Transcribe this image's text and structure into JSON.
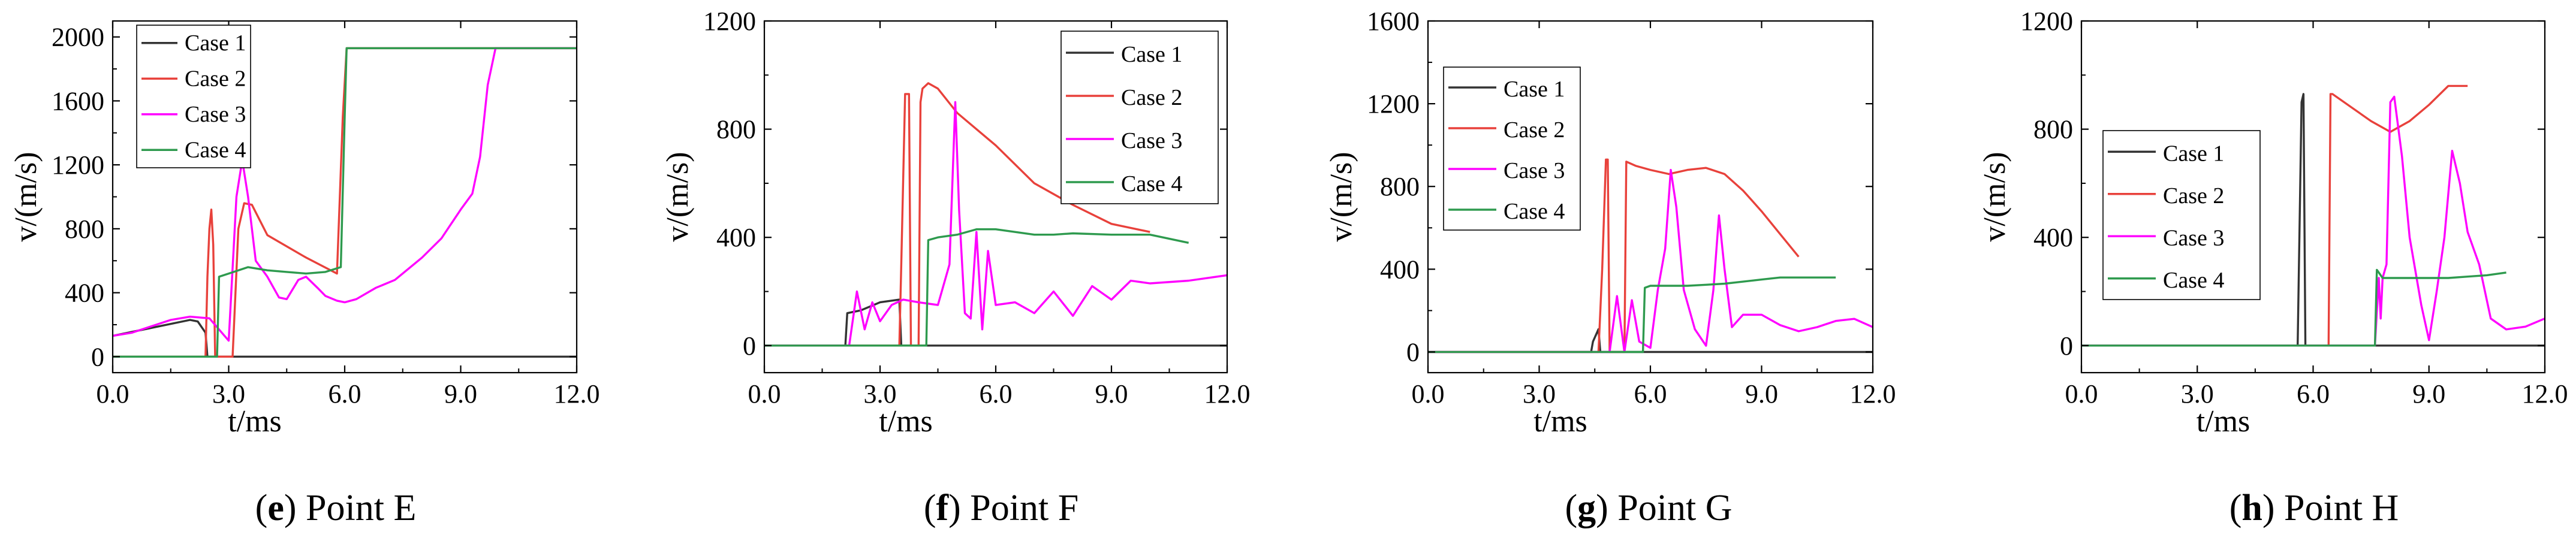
{
  "chart_data": [
    {
      "type": "line",
      "panel_letter": "e",
      "caption": " Point E",
      "xlabel": "t/ms",
      "ylabel": "v/(m/s)",
      "xlim": [
        0,
        12
      ],
      "ylim": [
        -100,
        2100
      ],
      "xticks": [
        0,
        3,
        6,
        9,
        12
      ],
      "xtick_labels": [
        "0.0",
        "3.0",
        "6.0",
        "9.0",
        "12.0"
      ],
      "yticks": [
        0,
        400,
        800,
        1200,
        1600,
        2000
      ],
      "ytick_labels": [
        "0",
        "400",
        "800",
        "1200",
        "1600",
        "2000"
      ],
      "legend": "top-left",
      "series": [
        {
          "name": "Case 1",
          "color": "#333333",
          "x": [
            0,
            1.0,
            2.0,
            2.2,
            2.4,
            2.45,
            12
          ],
          "y": [
            130,
            180,
            230,
            220,
            150,
            0,
            0
          ]
        },
        {
          "name": "Case 2",
          "color": "#e8413b",
          "x": [
            0,
            2.4,
            2.45,
            2.5,
            2.55,
            2.6,
            2.65,
            3.1,
            3.25,
            3.4,
            3.6,
            4.0,
            5.0,
            5.8,
            5.95,
            6.05,
            12
          ],
          "y": [
            0,
            0,
            500,
            800,
            920,
            700,
            0,
            0,
            800,
            960,
            950,
            760,
            620,
            520,
            1500,
            1930,
            1930
          ]
        },
        {
          "name": "Case 3",
          "color": "#ff00ff",
          "x": [
            0,
            0.5,
            1.0,
            1.5,
            2.0,
            2.5,
            3.0,
            3.2,
            3.35,
            3.5,
            3.7,
            4.0,
            4.3,
            4.5,
            4.8,
            5.0,
            5.3,
            5.5,
            5.8,
            6.0,
            6.3,
            6.8,
            7.3,
            8.0,
            8.5,
            9.0,
            9.3,
            9.5,
            9.7,
            9.9,
            10.5,
            12
          ],
          "y": [
            130,
            150,
            190,
            230,
            250,
            240,
            100,
            1000,
            1230,
            1000,
            600,
            500,
            370,
            360,
            480,
            500,
            430,
            380,
            350,
            340,
            360,
            430,
            480,
            620,
            740,
            920,
            1020,
            1250,
            1700,
            1930,
            1930,
            1930
          ]
        },
        {
          "name": "Case 4",
          "color": "#2e9a4e",
          "x": [
            0,
            2.7,
            2.75,
            3.0,
            3.5,
            4.0,
            4.5,
            5.0,
            5.5,
            5.9,
            6.0,
            6.05,
            12
          ],
          "y": [
            0,
            0,
            500,
            520,
            560,
            540,
            530,
            520,
            530,
            560,
            1500,
            1930,
            1930
          ]
        }
      ]
    },
    {
      "type": "line",
      "panel_letter": "f",
      "caption": " Point F",
      "xlabel": "t/ms",
      "ylabel": "v/(m/s)",
      "xlim": [
        0,
        12
      ],
      "ylim": [
        -100,
        1200
      ],
      "xticks": [
        0,
        3,
        6,
        9,
        12
      ],
      "xtick_labels": [
        "0.0",
        "3.0",
        "6.0",
        "9.0",
        "12.0"
      ],
      "yticks": [
        0,
        400,
        800,
        1200
      ],
      "ytick_labels": [
        "0",
        "400",
        "800",
        "1200"
      ],
      "legend": "top-right",
      "series": [
        {
          "name": "Case 1",
          "color": "#333333",
          "x": [
            0,
            2.1,
            2.15,
            2.5,
            3.0,
            3.5,
            3.55,
            12
          ],
          "y": [
            0,
            0,
            120,
            130,
            160,
            170,
            0,
            0
          ]
        },
        {
          "name": "Case 2",
          "color": "#e8413b",
          "x": [
            0,
            3.5,
            3.55,
            3.65,
            3.75,
            3.8,
            4.0,
            4.05,
            4.1,
            4.25,
            4.5,
            5.0,
            6.0,
            7.0,
            8.0,
            9.0,
            10.0
          ],
          "y": [
            0,
            0,
            300,
            930,
            930,
            0,
            0,
            900,
            950,
            970,
            950,
            860,
            740,
            600,
            520,
            450,
            420
          ]
        },
        {
          "name": "Case 3",
          "color": "#ff00ff",
          "x": [
            0,
            2.2,
            2.4,
            2.6,
            2.8,
            3.0,
            3.3,
            3.6,
            4.0,
            4.5,
            4.8,
            4.95,
            5.05,
            5.2,
            5.35,
            5.5,
            5.65,
            5.8,
            6.0,
            6.5,
            7.0,
            7.5,
            8.0,
            8.5,
            9.0,
            9.5,
            10.0,
            11.0,
            12.0
          ],
          "y": [
            0,
            0,
            200,
            60,
            160,
            90,
            150,
            170,
            160,
            150,
            300,
            900,
            500,
            120,
            100,
            420,
            60,
            350,
            150,
            160,
            120,
            200,
            110,
            220,
            170,
            240,
            230,
            240,
            260
          ]
        },
        {
          "name": "Case 4",
          "color": "#2e9a4e",
          "x": [
            0,
            4.2,
            4.25,
            4.5,
            5.0,
            5.5,
            6.0,
            6.5,
            7.0,
            7.5,
            8.0,
            9.0,
            10.0,
            11.0
          ],
          "y": [
            0,
            0,
            390,
            400,
            410,
            430,
            430,
            420,
            410,
            410,
            415,
            410,
            410,
            380
          ]
        }
      ]
    },
    {
      "type": "line",
      "panel_letter": "g",
      "caption": " Point G",
      "xlabel": "t/ms",
      "ylabel": "v/(m/s)",
      "xlim": [
        0,
        12
      ],
      "ylim": [
        -100,
        1600
      ],
      "xticks": [
        0,
        3,
        6,
        9,
        12
      ],
      "xtick_labels": [
        "0.0",
        "3.0",
        "6.0",
        "9.0",
        "12.0"
      ],
      "yticks": [
        0,
        400,
        800,
        1200,
        1600
      ],
      "ytick_labels": [
        "0",
        "400",
        "800",
        "1200",
        "1600"
      ],
      "legend": "top-left",
      "series": [
        {
          "name": "Case 1",
          "color": "#333333",
          "x": [
            0,
            4.4,
            4.45,
            4.6,
            4.65,
            12
          ],
          "y": [
            0,
            0,
            50,
            110,
            0,
            0
          ]
        },
        {
          "name": "Case 2",
          "color": "#e8413b",
          "x": [
            0,
            4.6,
            4.7,
            4.8,
            4.85,
            4.9,
            5.3,
            5.35,
            5.6,
            6.0,
            6.5,
            7.0,
            7.5,
            8.0,
            8.5,
            9.0,
            9.5,
            10.0
          ],
          "y": [
            0,
            0,
            400,
            930,
            930,
            0,
            0,
            920,
            900,
            880,
            860,
            880,
            890,
            860,
            780,
            680,
            570,
            460
          ]
        },
        {
          "name": "Case 3",
          "color": "#ff00ff",
          "x": [
            0,
            4.9,
            5.1,
            5.3,
            5.5,
            5.7,
            6.0,
            6.2,
            6.4,
            6.55,
            6.7,
            6.9,
            7.2,
            7.5,
            7.7,
            7.85,
            8.0,
            8.2,
            8.5,
            9.0,
            9.5,
            10.0,
            10.5,
            11.0,
            11.5,
            12.0
          ],
          "y": [
            0,
            0,
            270,
            0,
            250,
            50,
            20,
            300,
            500,
            880,
            700,
            300,
            110,
            30,
            300,
            660,
            400,
            120,
            180,
            180,
            130,
            100,
            120,
            150,
            160,
            120
          ]
        },
        {
          "name": "Case 4",
          "color": "#2e9a4e",
          "x": [
            0,
            5.8,
            5.85,
            6.0,
            6.5,
            7.0,
            7.5,
            8.0,
            8.5,
            9.0,
            9.5,
            10.0,
            11.0
          ],
          "y": [
            0,
            0,
            310,
            320,
            320,
            320,
            325,
            330,
            340,
            350,
            360,
            360,
            360
          ]
        }
      ]
    },
    {
      "type": "line",
      "panel_letter": "h",
      "caption": " Point H",
      "xlabel": "t/ms",
      "ylabel": "v/(m/s)",
      "xlim": [
        0,
        12
      ],
      "ylim": [
        -100,
        1200
      ],
      "xticks": [
        0,
        3,
        6,
        9,
        12
      ],
      "xtick_labels": [
        "0.0",
        "3.0",
        "6.0",
        "9.0",
        "12.0"
      ],
      "yticks": [
        0,
        400,
        800,
        1200
      ],
      "ytick_labels": [
        "0",
        "400",
        "800",
        "1200"
      ],
      "legend": "top-left",
      "series": [
        {
          "name": "Case 1",
          "color": "#333333",
          "x": [
            0,
            5.6,
            5.7,
            5.75,
            5.8,
            12
          ],
          "y": [
            0,
            0,
            900,
            930,
            0,
            0
          ]
        },
        {
          "name": "Case 2",
          "color": "#e8413b",
          "x": [
            0,
            6.4,
            6.45,
            6.5,
            7.0,
            7.5,
            8.0,
            8.5,
            9.0,
            9.5,
            10.0
          ],
          "y": [
            0,
            0,
            930,
            930,
            880,
            830,
            790,
            830,
            890,
            960,
            960
          ]
        },
        {
          "name": "Case 3",
          "color": "#ff00ff",
          "x": [
            0,
            7.6,
            7.7,
            7.75,
            7.8,
            7.9,
            8.0,
            8.1,
            8.3,
            8.5,
            8.8,
            9.0,
            9.2,
            9.4,
            9.6,
            9.8,
            10.0,
            10.3,
            10.6,
            11.0,
            11.5,
            12.0
          ],
          "y": [
            0,
            0,
            250,
            100,
            250,
            300,
            900,
            920,
            700,
            400,
            150,
            20,
            200,
            400,
            720,
            600,
            420,
            300,
            100,
            60,
            70,
            100
          ]
        },
        {
          "name": "Case 4",
          "color": "#2e9a4e",
          "x": [
            0,
            7.6,
            7.65,
            7.7,
            7.8,
            8.0,
            8.5,
            9.0,
            9.5,
            10.0,
            10.5,
            11.0
          ],
          "y": [
            0,
            0,
            280,
            270,
            250,
            250,
            250,
            250,
            250,
            255,
            260,
            270
          ]
        }
      ]
    }
  ]
}
